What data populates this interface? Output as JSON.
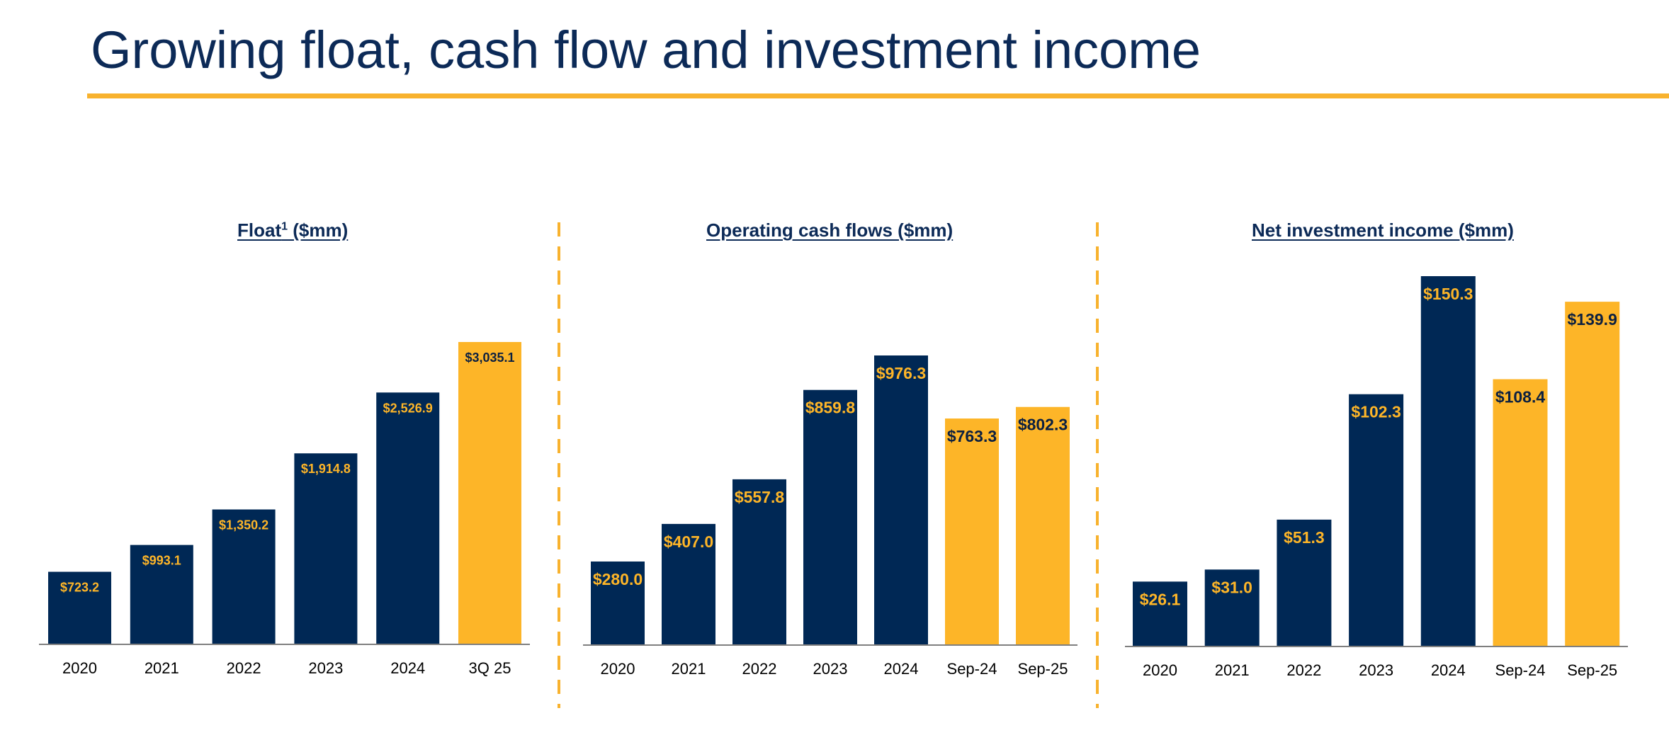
{
  "page": {
    "title": "Growing float, cash flow and investment income"
  },
  "colors": {
    "title": "#0c2a57",
    "accent": "#f8b22e",
    "navy_bar": "#002855",
    "gold_bar": "#fdb528",
    "navy_label": "#fdb528",
    "gold_label": "#0c2040",
    "axis": "#7f7f7f"
  },
  "chart_data": [
    {
      "type": "bar",
      "title": "Float",
      "title_sup": "1",
      "title_suffix": " ($mm)",
      "categories": [
        "2020",
        "2021",
        "2022",
        "2023",
        "2024",
        "3Q 25"
      ],
      "values": [
        723.2,
        993.1,
        1350.2,
        1914.8,
        2526.9,
        3035.1
      ],
      "labels": [
        "$723.2",
        "$993.1",
        "$1,350.2",
        "$1,914.8",
        "$2,526.9",
        "$3,035.1"
      ],
      "highlight": [
        false,
        false,
        false,
        false,
        false,
        true
      ],
      "xlabel": "",
      "ylabel": "",
      "ylim": [
        0,
        3150
      ]
    },
    {
      "type": "bar",
      "title": "Operating cash flows ($mm)",
      "categories": [
        "2020",
        "2021",
        "2022",
        "2023",
        "2024",
        "Sep-24",
        "Sep-25"
      ],
      "values": [
        280.0,
        407.0,
        557.8,
        859.8,
        976.3,
        763.3,
        802.3
      ],
      "labels": [
        "$280.0",
        "$407.0",
        "$557.8",
        "$859.8",
        "$976.3",
        "$763.3",
        "$802.3"
      ],
      "highlight": [
        false,
        false,
        false,
        false,
        false,
        true,
        true
      ],
      "xlabel": "",
      "ylabel": "",
      "ylim": [
        0,
        1100
      ]
    },
    {
      "type": "bar",
      "title": "Net investment income ($mm)",
      "categories": [
        "2020",
        "2021",
        "2022",
        "2023",
        "2024",
        "Sep-24",
        "Sep-25"
      ],
      "values": [
        26.1,
        31.0,
        51.3,
        102.3,
        150.3,
        108.4,
        139.9
      ],
      "labels": [
        "$26.1",
        "$31.0",
        "$51.3",
        "$102.3",
        "$150.3",
        "$108.4",
        "$139.9"
      ],
      "highlight": [
        false,
        false,
        false,
        false,
        false,
        true,
        true
      ],
      "xlabel": "",
      "ylabel": "",
      "ylim": [
        0,
        150.3
      ]
    }
  ]
}
